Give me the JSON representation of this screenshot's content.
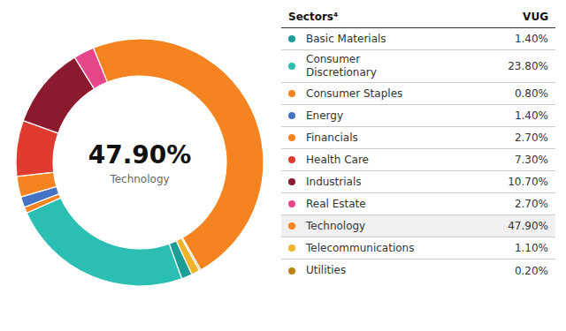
{
  "chart_data": {
    "type": "donut",
    "values": [
      47.9,
      0.2,
      1.1,
      1.4,
      23.8,
      0.8,
      1.4,
      2.7,
      7.3,
      10.7,
      2.7
    ],
    "colors": [
      "#f5831f",
      "#b8860b",
      "#f0b429",
      "#1a9e96",
      "#2bbfb3",
      "#f5831f",
      "#4472c4",
      "#f5831f",
      "#e03b2e",
      "#8b1a2e",
      "#e8468a"
    ],
    "center_label": "47.90%",
    "center_sublabel": "Technology",
    "table": {
      "headers": [
        "Sectors⁴",
        "VUG"
      ],
      "categories": [
        "Basic Materials",
        "Consumer\nDiscretionary",
        "Consumer Staples",
        "Energy",
        "Financials",
        "Health Care",
        "Industrials",
        "Real Estate",
        "Technology",
        "Telecommunications",
        "Utilities"
      ],
      "values": [
        1.4,
        23.8,
        0.8,
        1.4,
        2.7,
        7.3,
        10.7,
        2.7,
        47.9,
        1.1,
        0.2
      ],
      "value_labels": [
        "1.40%",
        "23.80%",
        "0.80%",
        "1.40%",
        "2.70%",
        "7.30%",
        "10.70%",
        "2.70%",
        "47.90%",
        "1.10%",
        "0.20%"
      ],
      "colors": [
        "#1a9e96",
        "#2bbfb3",
        "#f5831f",
        "#4472c4",
        "#f5831f",
        "#e03b2e",
        "#8b1a2e",
        "#e8468a",
        "#f5831f",
        "#f0b429",
        "#b8860b"
      ],
      "highlight": "Technology"
    }
  }
}
